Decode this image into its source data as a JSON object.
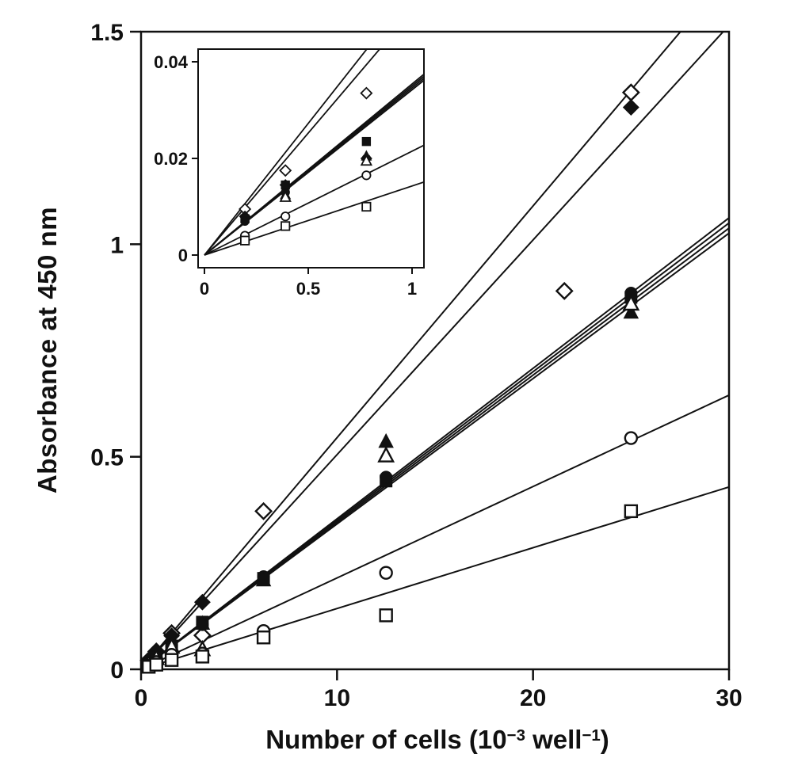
{
  "figure": {
    "background": "#ffffff",
    "ink": "#111111"
  },
  "chart_data": {
    "type": "scatter",
    "title": "",
    "xlabel": "Number of cells (10⁻³ well⁻¹)",
    "xlabel_parts": {
      "prefix": "Number of cells (10",
      "sup1": "−3",
      "mid": " well",
      "sup2": "−1",
      "suffix": ")"
    },
    "ylabel": "Absorbance at 450 nm",
    "legend": "none",
    "fit": "linear-through-origin",
    "main_axes": {
      "xlim": [
        0,
        30
      ],
      "ylim": [
        0,
        1.5
      ],
      "grid": false,
      "frame": "box",
      "xticks": [
        {
          "v": 0,
          "label": "0"
        },
        {
          "v": 10,
          "label": "10"
        },
        {
          "v": 20,
          "label": "20"
        },
        {
          "v": 30,
          "label": "30"
        }
      ],
      "yticks": [
        {
          "v": 0,
          "label": "0"
        },
        {
          "v": 0.5,
          "label": "0.5"
        },
        {
          "v": 1,
          "label": "1"
        },
        {
          "v": 1.5,
          "label": "1.5"
        }
      ]
    },
    "inset_axes": {
      "xlim": [
        0,
        1
      ],
      "ylim": [
        0,
        0.04
      ],
      "xticks": [
        {
          "v": 0,
          "label": "0"
        },
        {
          "v": 0.5,
          "label": "0.5"
        },
        {
          "v": 1,
          "label": "1"
        }
      ],
      "yticks": [
        {
          "v": 0,
          "label": "0"
        },
        {
          "v": 0.02,
          "label": "0.02"
        },
        {
          "v": 0.04,
          "label": "0.04"
        }
      ]
    },
    "series": [
      {
        "name": "open-diamond",
        "marker": "diamond",
        "fill": "open",
        "slope": 0.0545,
        "points": [
          [
            0.39,
            0.021
          ],
          [
            0.78,
            0.042
          ],
          [
            1.56,
            0.085
          ],
          [
            3.13,
            0.08
          ],
          [
            6.25,
            0.372
          ],
          [
            21.6,
            0.89
          ],
          [
            25,
            1.357
          ]
        ],
        "inset_points": [
          [
            0.195,
            0.0095
          ],
          [
            0.39,
            0.0175
          ],
          [
            0.78,
            0.0335
          ]
        ]
      },
      {
        "name": "filled-diamond",
        "marker": "diamond",
        "fill": "filled",
        "slope": 0.0505,
        "points": [
          [
            0.39,
            0.02
          ],
          [
            0.78,
            0.039
          ],
          [
            1.56,
            0.079
          ],
          [
            3.13,
            0.158
          ],
          [
            25,
            1.322
          ]
        ],
        "inset_points": [
          [
            0.195,
            0.008
          ],
          [
            0.39,
            0.0145
          ],
          [
            0.78,
            0.02
          ]
        ]
      },
      {
        "name": "filled-square",
        "marker": "square",
        "fill": "filled",
        "slope": 0.0354,
        "points": [
          [
            0.39,
            0.014
          ],
          [
            0.78,
            0.028
          ],
          [
            1.56,
            0.055
          ],
          [
            3.13,
            0.111
          ],
          [
            6.25,
            0.214
          ],
          [
            12.5,
            0.443
          ],
          [
            25,
            0.875
          ]
        ],
        "inset_points": [
          [
            0.195,
            0.0075
          ],
          [
            0.39,
            0.0145
          ],
          [
            0.78,
            0.0235
          ]
        ]
      },
      {
        "name": "filled-circle",
        "marker": "circle",
        "fill": "filled",
        "slope": 0.035,
        "points": [
          [
            0.39,
            0.014
          ],
          [
            0.78,
            0.027
          ],
          [
            1.56,
            0.055
          ],
          [
            3.13,
            0.105
          ],
          [
            6.25,
            0.218
          ],
          [
            12.5,
            0.452
          ],
          [
            25,
            0.885
          ]
        ],
        "inset_points": [
          [
            0.195,
            0.007
          ],
          [
            0.39,
            0.013
          ],
          [
            0.78,
            0.02
          ]
        ]
      },
      {
        "name": "filled-triangle",
        "marker": "triangle",
        "fill": "filled",
        "slope": 0.0346,
        "points": [
          [
            0.39,
            0.013
          ],
          [
            0.78,
            0.027
          ],
          [
            1.56,
            0.054
          ],
          [
            3.13,
            0.108
          ],
          [
            6.25,
            0.21
          ],
          [
            12.5,
            0.536
          ],
          [
            25,
            0.84
          ]
        ],
        "inset_points": [
          [
            0.39,
            0.0125
          ],
          [
            0.78,
            0.0205
          ]
        ]
      },
      {
        "name": "open-triangle",
        "marker": "triangle",
        "fill": "open",
        "slope": 0.0342,
        "points": [
          [
            0.39,
            0.013
          ],
          [
            0.78,
            0.026
          ],
          [
            1.56,
            0.053
          ],
          [
            3.13,
            0.047
          ],
          [
            12.5,
            0.503
          ],
          [
            25,
            0.86
          ]
        ],
        "inset_points": [
          [
            0.39,
            0.012
          ],
          [
            0.78,
            0.0195
          ]
        ]
      },
      {
        "name": "open-circle",
        "marker": "circle",
        "fill": "open",
        "slope": 0.0215,
        "points": [
          [
            0.39,
            0.008
          ],
          [
            0.78,
            0.017
          ],
          [
            1.56,
            0.034
          ],
          [
            3.13,
            0.037
          ],
          [
            6.25,
            0.09
          ],
          [
            12.5,
            0.227
          ],
          [
            25,
            0.544
          ]
        ],
        "inset_points": [
          [
            0.195,
            0.004
          ],
          [
            0.39,
            0.008
          ],
          [
            0.78,
            0.0165
          ]
        ]
      },
      {
        "name": "open-square",
        "marker": "square",
        "fill": "open",
        "slope": 0.0143,
        "points": [
          [
            0.39,
            0.006
          ],
          [
            0.78,
            0.011
          ],
          [
            1.56,
            0.022
          ],
          [
            3.13,
            0.03
          ],
          [
            6.25,
            0.075
          ],
          [
            12.5,
            0.127
          ],
          [
            25,
            0.372
          ]
        ],
        "inset_points": [
          [
            0.195,
            0.003
          ],
          [
            0.39,
            0.006
          ],
          [
            0.78,
            0.01
          ]
        ]
      }
    ]
  }
}
